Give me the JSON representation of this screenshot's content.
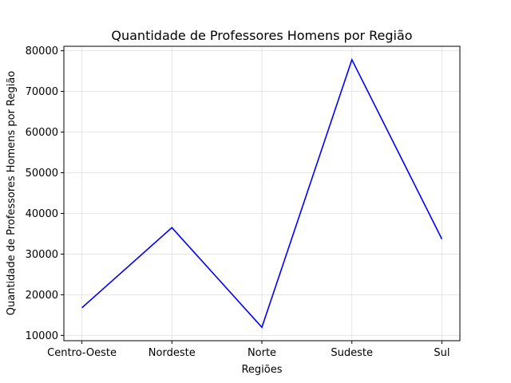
{
  "chart_data": {
    "type": "line",
    "title": "Quantidade de Professores Homens por Região",
    "xlabel": "Regiões",
    "ylabel": "Quantidade de Professores Homens por Região",
    "categories": [
      "Centro-Oeste",
      "Nordeste",
      "Norte",
      "Sudeste",
      "Sul"
    ],
    "series": [
      {
        "values": [
          16800,
          36500,
          12000,
          77800,
          33700
        ]
      }
    ],
    "xlim": [
      -0.2,
      4.2
    ],
    "ylim": [
      8700,
      81100
    ],
    "yticks": [
      10000,
      20000,
      30000,
      40000,
      50000,
      60000,
      70000,
      80000
    ],
    "ytick_labels": [
      "10000",
      "20000",
      "30000",
      "40000",
      "50000",
      "60000",
      "70000",
      "80000"
    ],
    "grid": true,
    "legend": "none",
    "colors": {
      "line": "#0000ff",
      "grid": "#e0e0e0",
      "axes": "#000000"
    }
  }
}
